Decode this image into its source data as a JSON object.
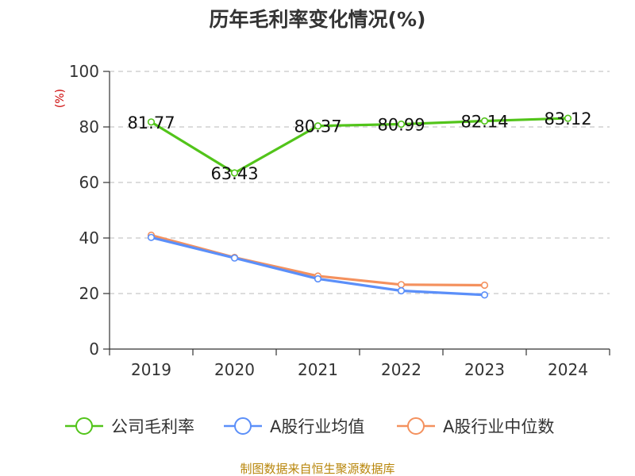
{
  "chart_data": {
    "type": "line",
    "title": "历年毛利率变化情况(%)",
    "y_unit": "(%)",
    "categories": [
      "2019",
      "2020",
      "2021",
      "2022",
      "2023",
      "2024"
    ],
    "ylim": [
      0,
      100
    ],
    "yticks": [
      "0",
      "20",
      "40",
      "60",
      "80",
      "100"
    ],
    "grid": "horizontal dashed",
    "legend_position": "bottom",
    "series": [
      {
        "name": "公司毛利率",
        "color": "#52c41a",
        "values": [
          81.77,
          63.43,
          80.37,
          80.99,
          82.14,
          83.12
        ],
        "labels": [
          "81.77",
          "63.43",
          "80.37",
          "80.99",
          "82.14",
          "83.12"
        ]
      },
      {
        "name": "A股行业均值",
        "color": "#5b8ff9",
        "values": [
          40.2,
          32.8,
          25.3,
          21.0,
          19.5,
          null
        ]
      },
      {
        "name": "A股行业中位数",
        "color": "#f4915e",
        "values": [
          41.0,
          33.0,
          26.3,
          23.2,
          23.0,
          null
        ]
      }
    ],
    "source": "制图数据来自恒生聚源数据库"
  }
}
